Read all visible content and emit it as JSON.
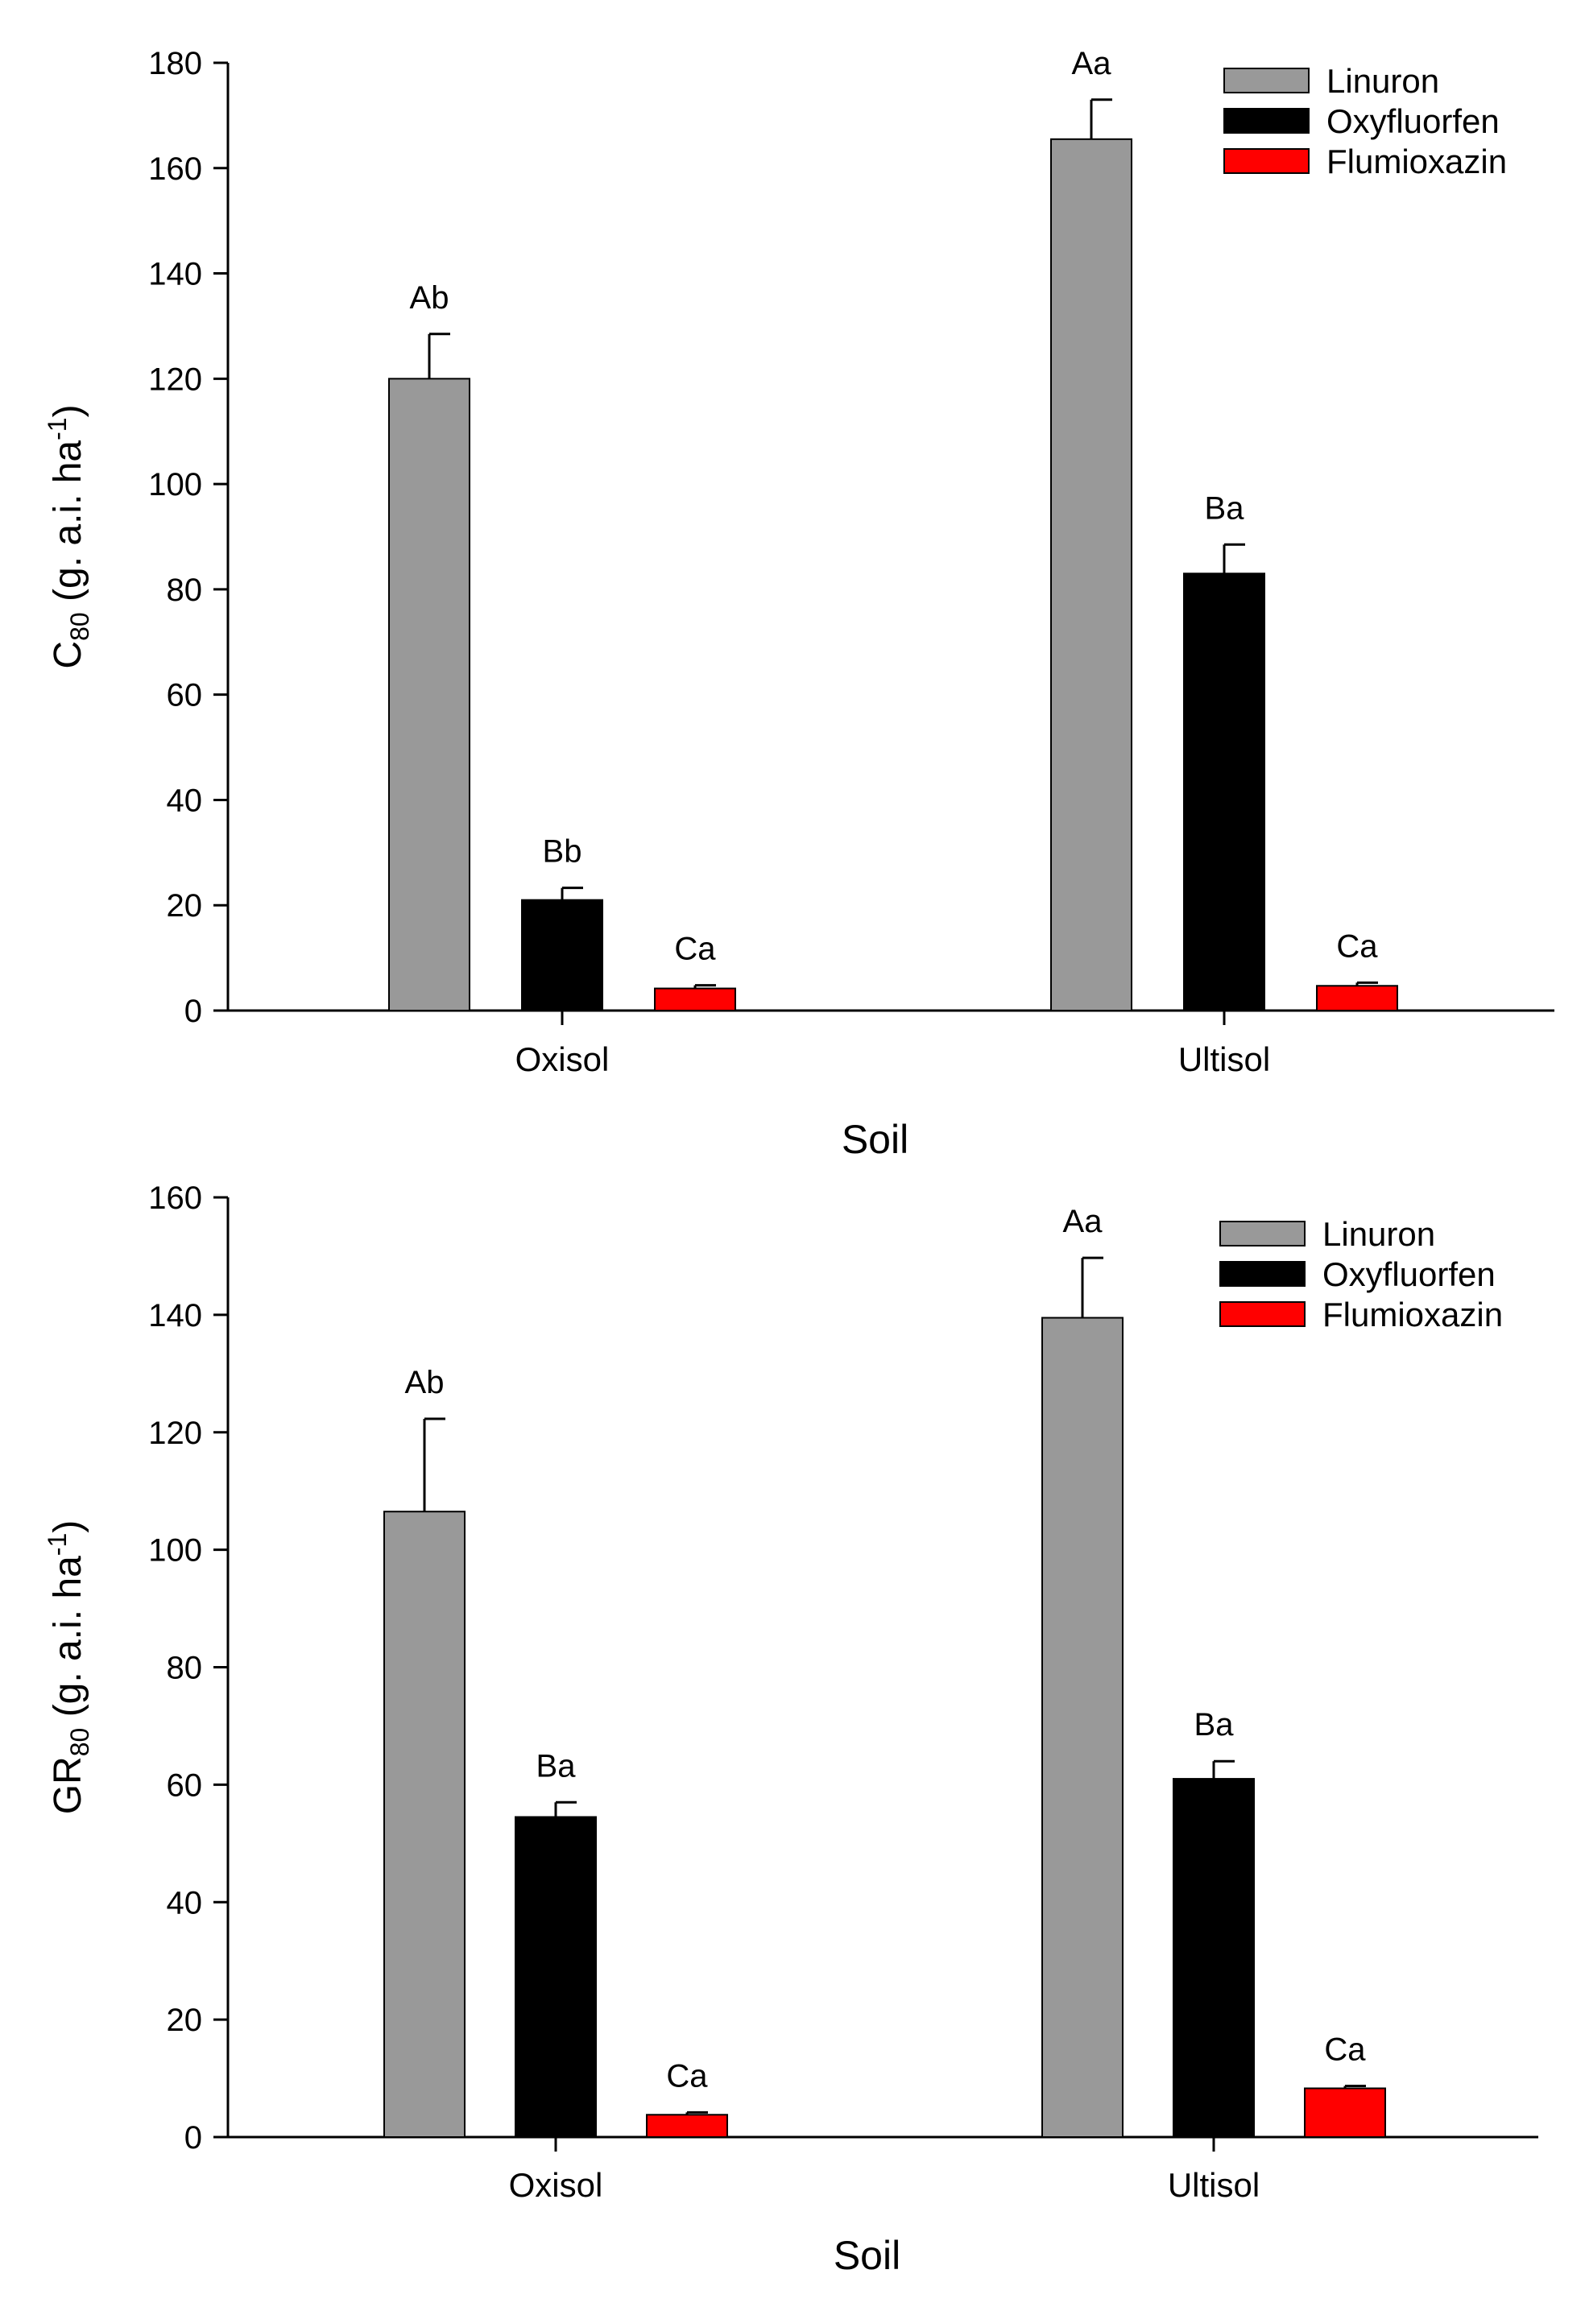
{
  "colors": {
    "Linuron": "#999999",
    "Oxyfluorfen": "#000000",
    "Flumioxazin": "#ff0000"
  },
  "chart_data": [
    {
      "type": "bar",
      "categories": [
        "Oxisol",
        "Ultisol"
      ],
      "xlabel": "Soil",
      "ylabel": {
        "main": "C",
        "sub": "80",
        "rest": " (g. a.i. ha",
        "sup": "-1",
        "close": ")"
      },
      "ylim": [
        0,
        180
      ],
      "yticks": [
        0,
        20,
        40,
        60,
        80,
        100,
        120,
        140,
        160,
        180
      ],
      "legend": "top-right",
      "series": [
        {
          "name": "Linuron",
          "values": [
            120,
            165.5
          ],
          "errors": [
            8.5,
            7.5
          ],
          "labels": [
            "Ab",
            "Aa"
          ]
        },
        {
          "name": "Oxyfluorfen",
          "values": [
            21,
            83
          ],
          "errors": [
            2.3,
            5.5
          ],
          "labels": [
            "Bb",
            "Ba"
          ]
        },
        {
          "name": "Flumioxazin",
          "values": [
            4.2,
            4.7
          ],
          "errors": [
            0.6,
            0.6
          ],
          "labels": [
            "Ca",
            "Ca"
          ]
        }
      ]
    },
    {
      "type": "bar",
      "categories": [
        "Oxisol",
        "Ultisol"
      ],
      "xlabel": "Soil",
      "ylabel": {
        "main": "GR",
        "sub": "80",
        "rest": " (g. a.i. ha",
        "sup": "-1",
        "close": ")"
      },
      "ylim": [
        0,
        160
      ],
      "yticks": [
        0,
        20,
        40,
        60,
        80,
        100,
        120,
        140,
        160
      ],
      "legend": "top-right",
      "series": [
        {
          "name": "Linuron",
          "values": [
            106.5,
            139.5
          ],
          "errors": [
            15.8,
            10.2
          ],
          "labels": [
            "Ab",
            "Aa"
          ]
        },
        {
          "name": "Oxyfluorfen",
          "values": [
            54.5,
            61
          ],
          "errors": [
            2.5,
            3
          ],
          "labels": [
            "Ba",
            "Ba"
          ]
        },
        {
          "name": "Flumioxazin",
          "values": [
            3.8,
            8.3
          ],
          "errors": [
            0.4,
            0.4
          ],
          "labels": [
            "Ca",
            "Ca"
          ]
        }
      ]
    }
  ]
}
